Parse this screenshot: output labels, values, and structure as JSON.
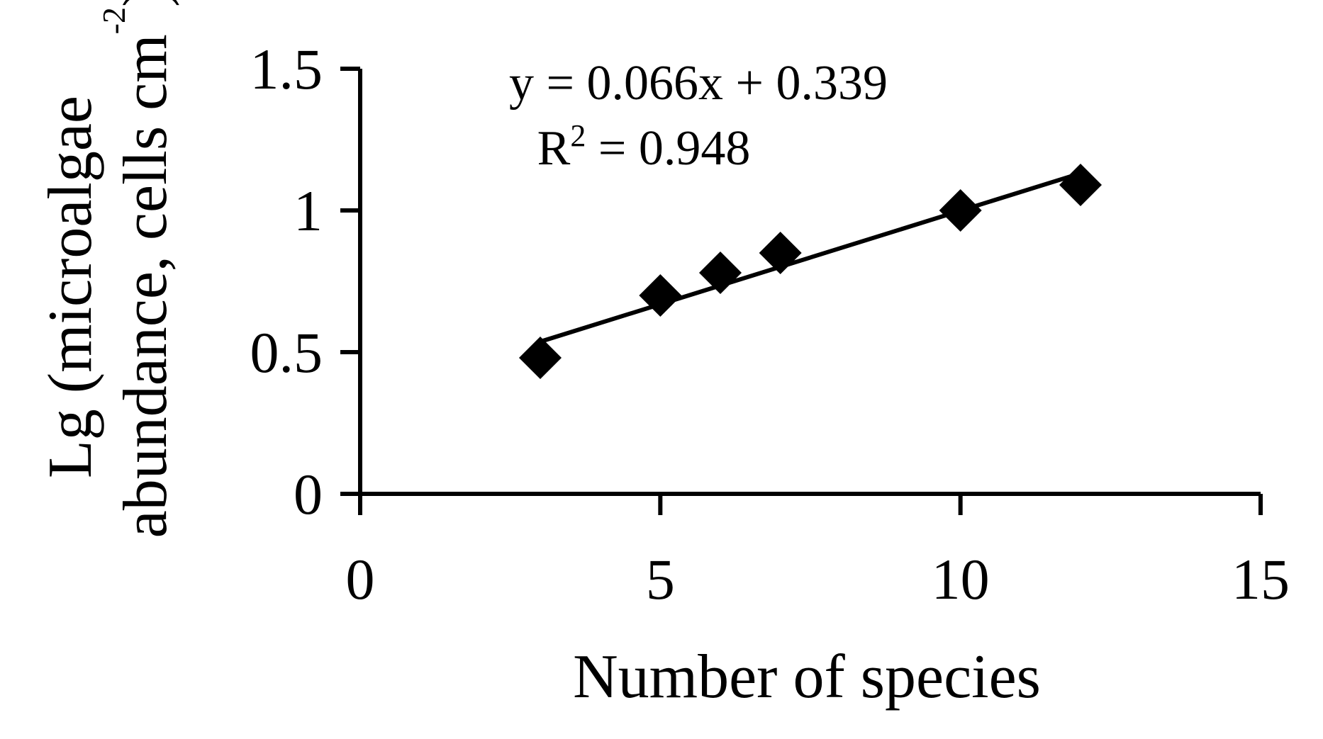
{
  "chart_data": {
    "type": "scatter",
    "title": "",
    "xlabel": "Number of species",
    "ylabel_line1": "Lg (microalgae",
    "ylabel_line2": "abundance, cells cm",
    "ylabel_superscript": "-2",
    "ylabel_close": ")",
    "xlim": [
      0,
      15
    ],
    "ylim": [
      0,
      1.5
    ],
    "x_ticks": [
      0,
      5,
      10,
      15
    ],
    "x_tick_labels": [
      "0",
      "5",
      "10",
      "15"
    ],
    "y_ticks": [
      0,
      0.5,
      1,
      1.5
    ],
    "y_tick_labels": [
      "0",
      "0.5",
      "1",
      "1.5"
    ],
    "grid": false,
    "legend": false,
    "series": [
      {
        "marker": "diamond",
        "color": "#000000",
        "points": [
          {
            "x": 3,
            "y": 0.48
          },
          {
            "x": 5,
            "y": 0.7
          },
          {
            "x": 6,
            "y": 0.78
          },
          {
            "x": 7,
            "y": 0.85
          },
          {
            "x": 10,
            "y": 1.0
          },
          {
            "x": 12,
            "y": 1.09
          }
        ]
      }
    ],
    "trendline": {
      "type": "linear",
      "slope": 0.066,
      "intercept": 0.339,
      "x_range": [
        3,
        12
      ],
      "color": "#000000"
    },
    "annotations": {
      "equation": "y = 0.066x + 0.339",
      "r2_prefix": "R",
      "r2_superscript": "2",
      "r2_suffix": " = 0.948"
    }
  }
}
